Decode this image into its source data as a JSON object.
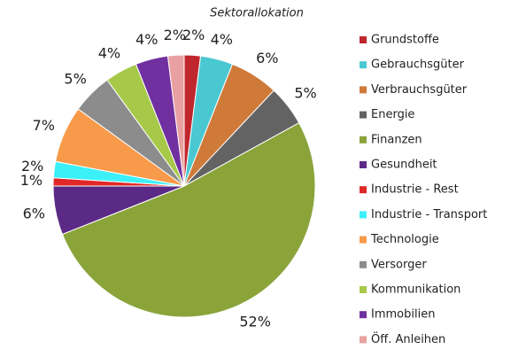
{
  "chart_data": {
    "type": "pie",
    "title": "Sektorallokation",
    "categories": [
      "Grundstoffe",
      "Gebrauchsgüter",
      "Verbrauchsgüter",
      "Energie",
      "Finanzen",
      "Gesundheit",
      "Industrie - Rest",
      "Industrie - Transport",
      "Technologie",
      "Versorger",
      "Kommunikation",
      "Immobilien",
      "Öff. Anleihen"
    ],
    "values": [
      2,
      4,
      6,
      5,
      52,
      6,
      1,
      2,
      7,
      5,
      4,
      4,
      2
    ],
    "value_labels": [
      "2%",
      "4%",
      "6%",
      "5%",
      "52%",
      "6%",
      "1%",
      "2%",
      "7%",
      "5%",
      "4%",
      "4%",
      "2%"
    ],
    "colors": [
      "#c0262d",
      "#4ac8d2",
      "#d07a3a",
      "#636363",
      "#8aa43a",
      "#5b2a86",
      "#e02828",
      "#3cf0f8",
      "#f79a4a",
      "#8c8c8c",
      "#a6c94a",
      "#7030a0",
      "#e8a0a0"
    ],
    "legend": "right"
  }
}
